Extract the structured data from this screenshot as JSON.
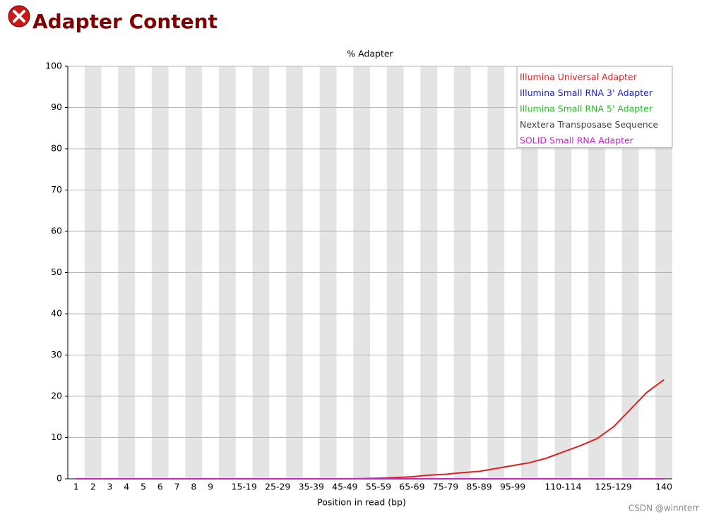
{
  "header": {
    "title": "Adapter Content"
  },
  "chart_data": {
    "type": "line",
    "title": "% Adapter",
    "x_label": "Position in read (bp)",
    "categories": [
      "1",
      "2",
      "3",
      "4",
      "5",
      "6",
      "7",
      "8",
      "9",
      null,
      "15-19",
      null,
      "25-29",
      null,
      "35-39",
      null,
      "45-49",
      null,
      "55-59",
      null,
      "65-69",
      null,
      "75-79",
      null,
      "85-89",
      null,
      "95-99",
      null,
      null,
      "110-114",
      null,
      null,
      "125-129",
      null,
      null,
      "140"
    ],
    "series": [
      {
        "name": "Illumina Universal Adapter",
        "color": "#dd2020",
        "values": [
          0,
          0,
          0,
          0,
          0,
          0,
          0,
          0,
          0,
          0,
          0,
          0,
          0,
          0,
          0,
          0,
          0,
          0.05,
          0.15,
          0.3,
          0.5,
          0.9,
          1.1,
          1.5,
          1.8,
          2.5,
          3.2,
          3.9,
          5,
          6.5,
          8,
          9.7,
          12.6,
          16.8,
          21,
          24
        ]
      },
      {
        "name": "Illumina Small RNA 3' Adapter",
        "color": "#2020cc",
        "values": [
          0,
          0,
          0,
          0,
          0,
          0,
          0,
          0,
          0,
          0,
          0,
          0,
          0,
          0,
          0,
          0,
          0,
          0,
          0,
          0,
          0,
          0,
          0,
          0,
          0,
          0,
          0,
          0,
          0,
          0,
          0,
          0,
          0,
          0,
          0,
          0
        ]
      },
      {
        "name": "Illumina Small RNA 5' Adapter",
        "color": "#22bb22",
        "values": [
          0,
          0,
          0,
          0,
          0,
          0,
          0,
          0,
          0,
          0,
          0,
          0,
          0,
          0,
          0,
          0,
          0,
          0,
          0,
          0,
          0,
          0,
          0,
          0,
          0,
          0,
          0,
          0,
          0,
          0,
          0,
          0,
          0,
          0,
          0,
          0
        ]
      },
      {
        "name": "Nextera Transposase Sequence",
        "color": "#444444",
        "values": [
          0,
          0,
          0,
          0,
          0,
          0,
          0,
          0,
          0,
          0,
          0,
          0,
          0,
          0,
          0,
          0,
          0,
          0,
          0,
          0,
          0,
          0,
          0,
          0,
          0,
          0,
          0,
          0,
          0,
          0,
          0,
          0,
          0,
          0,
          0,
          0
        ]
      },
      {
        "name": "SOLID Small RNA Adapter",
        "color": "#cc22cc",
        "values": [
          0,
          0,
          0,
          0,
          0,
          0,
          0,
          0,
          0,
          0,
          0,
          0,
          0,
          0,
          0,
          0,
          0,
          0,
          0,
          0,
          0,
          0,
          0,
          0,
          0,
          0,
          0,
          0,
          0,
          0,
          0,
          0,
          0,
          0,
          0,
          0
        ]
      }
    ],
    "ylim": [
      0,
      100
    ],
    "yticks": [
      0,
      10,
      20,
      30,
      40,
      50,
      60,
      70,
      80,
      90,
      100
    ],
    "grid": true,
    "legend": "top-right"
  },
  "watermark": "CSDN @winnterr"
}
